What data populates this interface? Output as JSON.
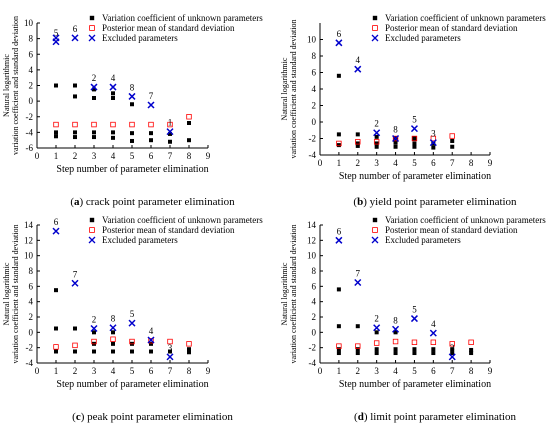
{
  "legend": {
    "unknown": "Variation coefficient of unknown parameters",
    "posterior": "Posterior mean of standard deviation",
    "excluded": "Excluded parameters"
  },
  "ylabel_line1": "Natural logarithmic",
  "ylabel_line2": "variation coefficient and standard deviation",
  "xlabel": "Step number of parameter elimination",
  "colors": {
    "unknown": "#000000",
    "posterior": "#ff0000",
    "excluded": "#0000cc"
  },
  "chart_data": [
    {
      "type": "scatter",
      "caption_letter": "a",
      "caption_rest": " crack point parameter elimination",
      "xlabel": "Step number of parameter elimination",
      "xlim": [
        0,
        9
      ],
      "ylim": [
        -6,
        10
      ],
      "xticks": [
        "0",
        "1",
        "2",
        "3",
        "4",
        "5",
        "6",
        "7",
        "8",
        "9"
      ],
      "yticks": [
        "-6",
        "-4",
        "-2",
        "0",
        "2",
        "4",
        "6",
        "8",
        "10"
      ],
      "unknown": [
        [
          1,
          2
        ],
        [
          1,
          -4
        ],
        [
          1,
          -4.5
        ],
        [
          2,
          2
        ],
        [
          2,
          0.6
        ],
        [
          2,
          -4
        ],
        [
          2,
          -4.6
        ],
        [
          3,
          1.5
        ],
        [
          3,
          0.4
        ],
        [
          3,
          -4
        ],
        [
          3,
          -4.6
        ],
        [
          4,
          1
        ],
        [
          4,
          0.4
        ],
        [
          4,
          -4
        ],
        [
          4,
          -4.7
        ],
        [
          5,
          -0.4
        ],
        [
          5,
          -4.1
        ],
        [
          5,
          -5.1
        ],
        [
          6,
          -4.1
        ],
        [
          6,
          -5
        ],
        [
          7,
          -4.2
        ],
        [
          7,
          -5.2
        ],
        [
          8,
          -2.8
        ],
        [
          8,
          -5
        ]
      ],
      "posterior": [
        [
          1,
          -3
        ],
        [
          2,
          -3
        ],
        [
          3,
          -3
        ],
        [
          4,
          -3
        ],
        [
          5,
          -3
        ],
        [
          6,
          -3
        ],
        [
          7,
          -3
        ],
        [
          8,
          -2
        ]
      ],
      "excluded": [
        {
          "x": 1,
          "y": 7.6,
          "label": "5"
        },
        {
          "x": 1,
          "y": 8.1,
          "label": ""
        },
        {
          "x": 2,
          "y": 8.1,
          "label": "6"
        },
        {
          "x": 3,
          "y": 1.8,
          "label": "2"
        },
        {
          "x": 4,
          "y": 1.8,
          "label": "4"
        },
        {
          "x": 5,
          "y": 0.6,
          "label": "8"
        },
        {
          "x": 6,
          "y": -0.5,
          "label": "7"
        },
        {
          "x": 7,
          "y": -3.9,
          "label": "1"
        }
      ]
    },
    {
      "type": "scatter",
      "caption_letter": "b",
      "caption_rest": " yield point parameter elimination",
      "xlabel": "Step number of parameter elimination",
      "xlim": [
        0,
        9
      ],
      "ylim": [
        -4,
        12
      ],
      "xticks": [
        "0",
        "1",
        "2",
        "3",
        "4",
        "5",
        "6",
        "7",
        "8",
        "9"
      ],
      "yticks": [
        "-4",
        "-2",
        "0",
        "2",
        "4",
        "6",
        "8",
        "10"
      ],
      "unknown": [
        [
          1,
          5.6
        ],
        [
          1,
          -1.5
        ],
        [
          1,
          -2.8
        ],
        [
          2,
          -1.5
        ],
        [
          2,
          -2.6
        ],
        [
          2,
          -2.9
        ],
        [
          3,
          -1.8
        ],
        [
          3,
          -2.6
        ],
        [
          3,
          -3
        ],
        [
          4,
          -2
        ],
        [
          4,
          -2.5
        ],
        [
          4,
          -3
        ],
        [
          5,
          -2
        ],
        [
          5,
          -2.6
        ],
        [
          5,
          -3
        ],
        [
          6,
          -2.6
        ],
        [
          6,
          -3.1
        ],
        [
          7,
          -2.3
        ],
        [
          7,
          -3
        ]
      ],
      "posterior": [
        [
          1,
          -2.6
        ],
        [
          2,
          -2.4
        ],
        [
          3,
          -2.4
        ],
        [
          4,
          -2
        ],
        [
          5,
          -2
        ],
        [
          6,
          -2
        ],
        [
          7,
          -1.7
        ]
      ],
      "excluded": [
        {
          "x": 1,
          "y": 9.6,
          "label": "6"
        },
        {
          "x": 2,
          "y": 6.4,
          "label": "4"
        },
        {
          "x": 3,
          "y": -1.3,
          "label": "2"
        },
        {
          "x": 4,
          "y": -2,
          "label": "8"
        },
        {
          "x": 5,
          "y": -0.8,
          "label": "5"
        },
        {
          "x": 6,
          "y": -2.5,
          "label": "3"
        }
      ]
    },
    {
      "type": "scatter",
      "caption_letter": "c",
      "caption_rest": " peak point parameter elimination",
      "xlabel": "Step number of parameter elimination",
      "xlim": [
        0,
        9
      ],
      "ylim": [
        -4,
        14
      ],
      "xticks": [
        "0",
        "1",
        "2",
        "3",
        "4",
        "5",
        "6",
        "7",
        "8",
        "9"
      ],
      "yticks": [
        "-4",
        "-2",
        "0",
        "2",
        "4",
        "6",
        "8",
        "10",
        "12",
        "14"
      ],
      "unknown": [
        [
          1,
          5.5
        ],
        [
          1,
          0.5
        ],
        [
          1,
          -2.5
        ],
        [
          2,
          0.5
        ],
        [
          2,
          -2.5
        ],
        [
          3,
          0
        ],
        [
          3,
          -1.5
        ],
        [
          3,
          -2.5
        ],
        [
          4,
          0
        ],
        [
          4,
          -1.5
        ],
        [
          4,
          -2.5
        ],
        [
          5,
          -1.5
        ],
        [
          5,
          -2.5
        ],
        [
          6,
          -1.5
        ],
        [
          6,
          -2.5
        ],
        [
          7,
          -2.5
        ],
        [
          8,
          -2.2
        ],
        [
          8,
          -2.6
        ]
      ],
      "posterior": [
        [
          1,
          -1.9
        ],
        [
          2,
          -1.7
        ],
        [
          3,
          -1.2
        ],
        [
          4,
          -0.9
        ],
        [
          5,
          -1.2
        ],
        [
          6,
          -1.1
        ],
        [
          7,
          -1.2
        ],
        [
          8,
          -1.5
        ]
      ],
      "excluded": [
        {
          "x": 1,
          "y": 13.2,
          "label": "6"
        },
        {
          "x": 2,
          "y": 6.4,
          "label": "7"
        },
        {
          "x": 3,
          "y": 0.5,
          "label": "2"
        },
        {
          "x": 4,
          "y": 0.6,
          "label": "8"
        },
        {
          "x": 5,
          "y": 1.2,
          "label": "5"
        },
        {
          "x": 6,
          "y": -1,
          "label": "4"
        },
        {
          "x": 7,
          "y": -3.2,
          "label": "3"
        }
      ]
    },
    {
      "type": "scatter",
      "caption_letter": "d",
      "caption_rest": " limit point parameter elimination",
      "xlabel": "Step number of parameter elimination",
      "xlim": [
        0,
        9
      ],
      "ylim": [
        -4,
        14
      ],
      "xticks": [
        "0",
        "1",
        "2",
        "3",
        "4",
        "5",
        "6",
        "7",
        "8",
        "9"
      ],
      "yticks": [
        "-4",
        "-2",
        "0",
        "2",
        "4",
        "6",
        "8",
        "10",
        "12",
        "14"
      ],
      "unknown": [
        [
          1,
          5.6
        ],
        [
          1,
          0.8
        ],
        [
          1,
          -2.2
        ],
        [
          1,
          -2.7
        ],
        [
          2,
          0.8
        ],
        [
          2,
          -2.2
        ],
        [
          2,
          -2.7
        ],
        [
          3,
          0
        ],
        [
          3,
          -2.2
        ],
        [
          3,
          -2.7
        ],
        [
          4,
          0
        ],
        [
          4,
          -2.2
        ],
        [
          4,
          -2.7
        ],
        [
          5,
          -2.2
        ],
        [
          5,
          -2.7
        ],
        [
          6,
          -2.2
        ],
        [
          6,
          -2.7
        ],
        [
          7,
          -2.2
        ],
        [
          7,
          -2.7
        ],
        [
          8,
          -2.3
        ],
        [
          8,
          -2.7
        ]
      ],
      "posterior": [
        [
          1,
          -1.8
        ],
        [
          2,
          -1.8
        ],
        [
          3,
          -1.4
        ],
        [
          4,
          -1.2
        ],
        [
          5,
          -1.3
        ],
        [
          6,
          -1.3
        ],
        [
          7,
          -1.5
        ],
        [
          8,
          -1.3
        ]
      ],
      "excluded": [
        {
          "x": 1,
          "y": 12,
          "label": "6"
        },
        {
          "x": 2,
          "y": 6.5,
          "label": "7"
        },
        {
          "x": 3,
          "y": 0.6,
          "label": "2"
        },
        {
          "x": 4,
          "y": 0.4,
          "label": "8"
        },
        {
          "x": 5,
          "y": 1.8,
          "label": "5"
        },
        {
          "x": 6,
          "y": -0.1,
          "label": "4"
        },
        {
          "x": 7,
          "y": -3.2,
          "label": "3"
        }
      ]
    }
  ]
}
